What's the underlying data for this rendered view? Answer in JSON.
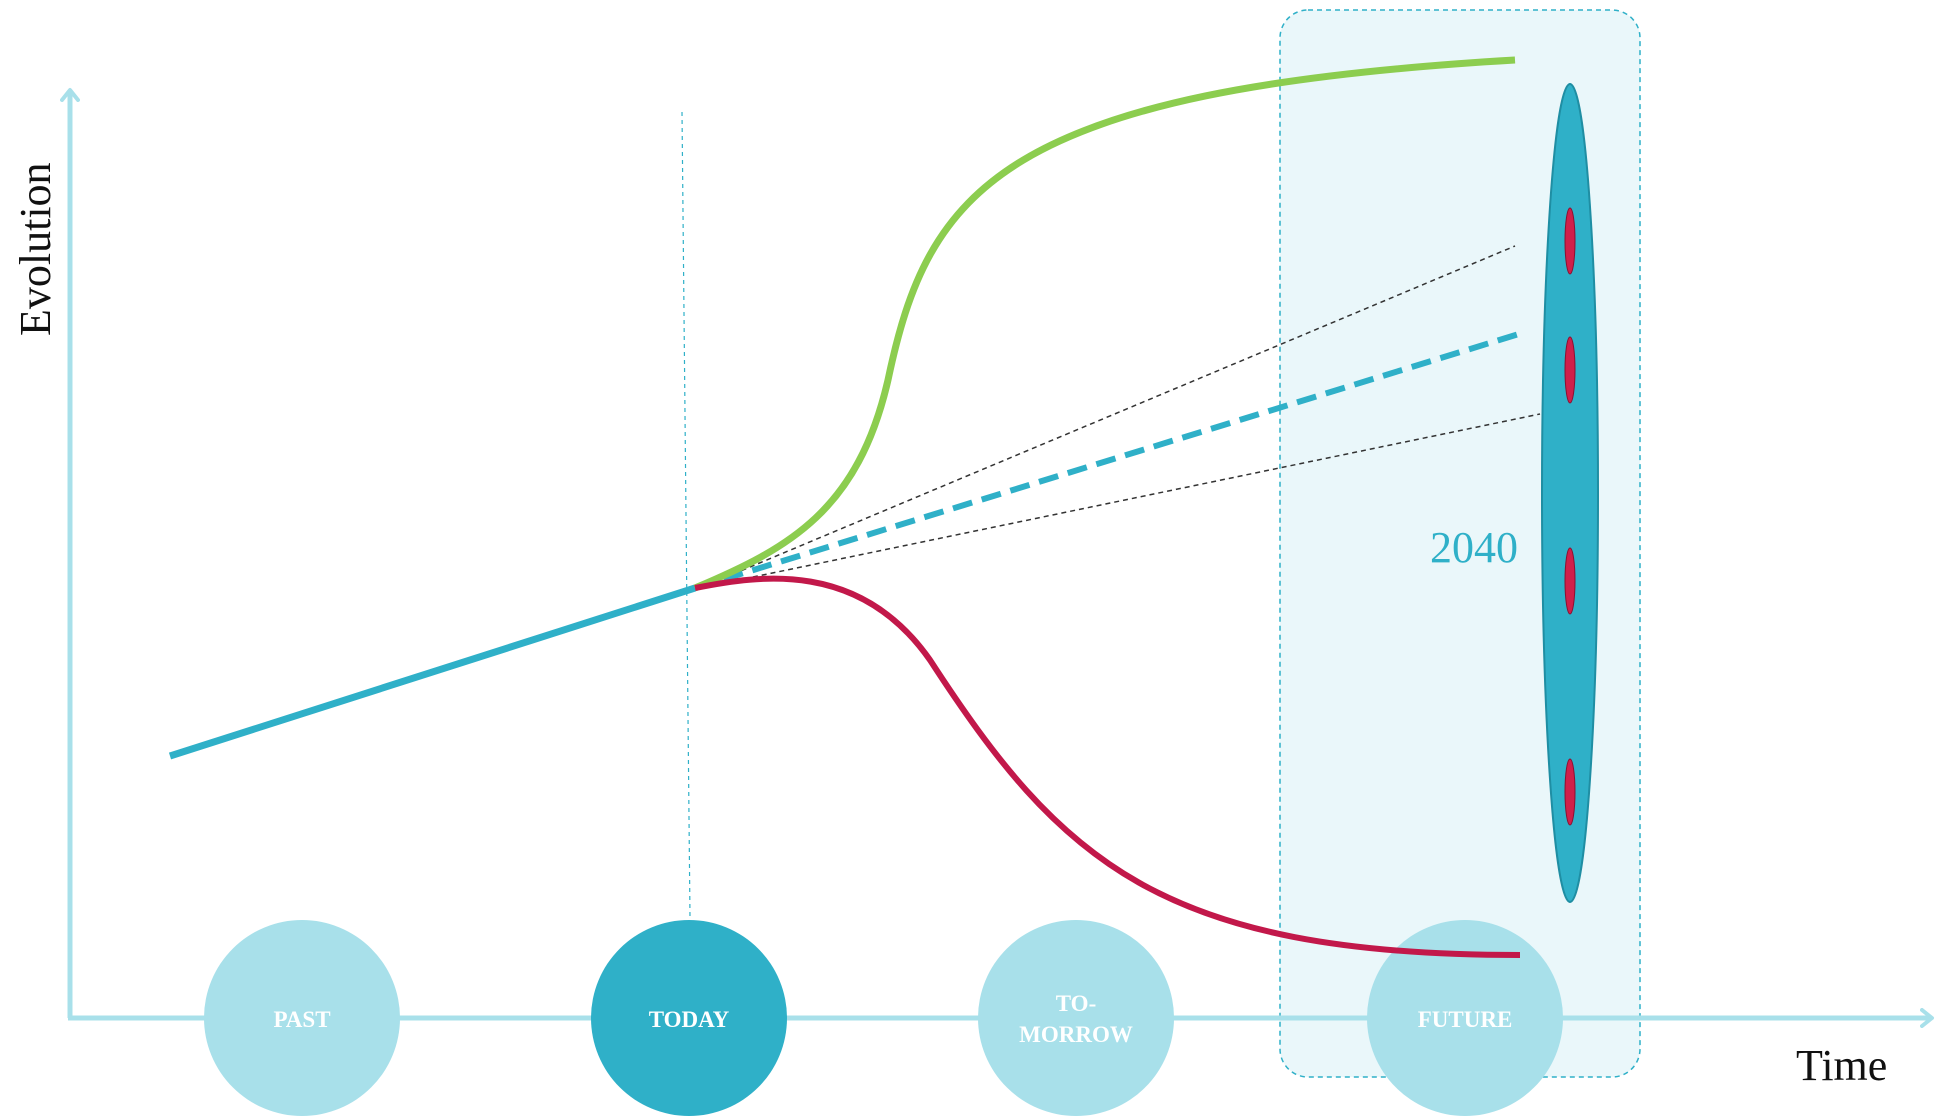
{
  "axes": {
    "x_label": "Time",
    "y_label": "Evolution"
  },
  "eras": [
    {
      "id": "past",
      "label": "PAST",
      "fill": "#a8e0ea"
    },
    {
      "id": "today",
      "label": "TODAY",
      "fill": "#2fb0c8"
    },
    {
      "id": "tomorrow",
      "label_lines": [
        "TO-",
        "MORROW"
      ],
      "fill": "#a8e0ea"
    },
    {
      "id": "future",
      "label": "FUTURE",
      "fill": "#a8e0ea"
    }
  ],
  "future_zone": {
    "year": "2040"
  },
  "colors": {
    "axis": "#a8e0ea",
    "trend": "#2fb0c8",
    "growth": "#8ccd4f",
    "decline": "#c2184a",
    "zone_fill": "#eaf7fa",
    "zone_border": "#2fb0c8",
    "scenario_ellipse": "#2fb0c8",
    "scenario_marker": "#d01f4a",
    "cone": "#333333"
  }
}
